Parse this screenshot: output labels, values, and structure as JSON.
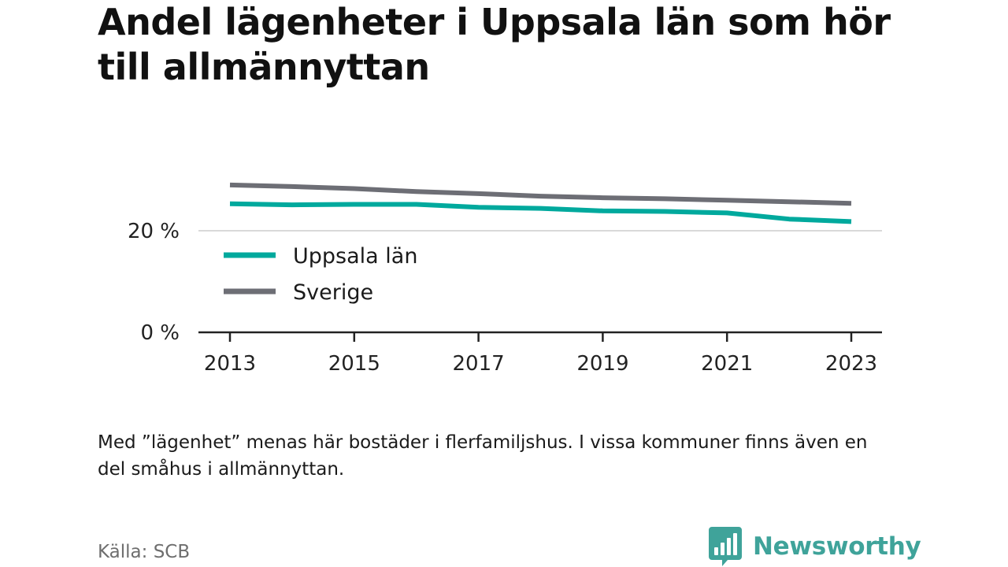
{
  "title": "Andel lägenheter i Uppsala län som hör till allmännyttan",
  "note": "Med ”lägenhet” menas här bostäder i flerfamiljshus. I vissa kommuner finns även en del småhus i allmännyttan.",
  "source": "Källa: SCB",
  "brand": {
    "name": "Newsworthy",
    "icon": "bar-chart-speech-bubble-icon",
    "color": "#3fa39a"
  },
  "chart_data": {
    "type": "line",
    "title": "Andel lägenheter i Uppsala län som hör till allmännyttan",
    "xlabel": "",
    "ylabel": "",
    "x": [
      2013,
      2014,
      2015,
      2016,
      2017,
      2018,
      2019,
      2020,
      2021,
      2022,
      2023
    ],
    "x_ticks": [
      "2013",
      "2015",
      "2017",
      "2019",
      "2021",
      "2023"
    ],
    "x_tick_values": [
      2013,
      2015,
      2017,
      2019,
      2021,
      2023
    ],
    "y_ticks": [
      "0 %",
      "20 %"
    ],
    "y_tick_values": [
      0,
      20
    ],
    "ylim": [
      0,
      32
    ],
    "grid": true,
    "legend_position": "inside-left",
    "series": [
      {
        "name": "Uppsala län",
        "color": "#00a99d",
        "values": [
          25.3,
          25.1,
          25.2,
          25.2,
          24.6,
          24.4,
          23.9,
          23.8,
          23.5,
          22.3,
          21.8
        ]
      },
      {
        "name": "Sverige",
        "color": "#6d6e75",
        "values": [
          29.0,
          28.7,
          28.3,
          27.7,
          27.3,
          26.8,
          26.5,
          26.3,
          26.0,
          25.7,
          25.4
        ]
      }
    ]
  }
}
